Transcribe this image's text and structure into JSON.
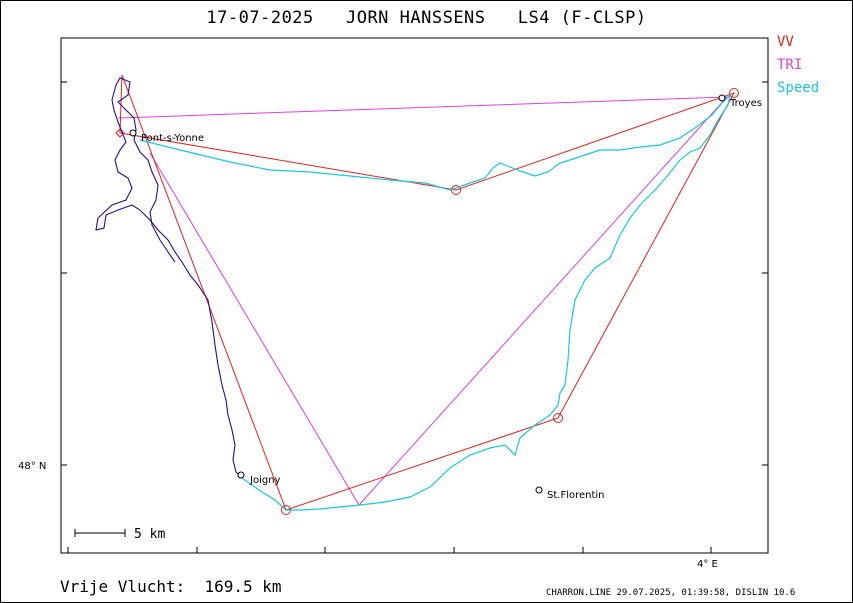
{
  "title": "17-07-2025   JORN HANSSENS   LS4 (F-CLSP)",
  "legend": {
    "vv": "VV",
    "tri": "TRI",
    "speed": "Speed"
  },
  "colors": {
    "vv": "#e8201a",
    "tri": "#e040e0",
    "speed": "#18c8e0",
    "track": "#2a0f8a"
  },
  "axes": {
    "lat_label": "48° N",
    "lon_label": "4° E"
  },
  "scale_label": "5  km",
  "towns": [
    {
      "name": "Pont-s-Yonne"
    },
    {
      "name": "Troyes"
    },
    {
      "name": "Joigny"
    },
    {
      "name": "St.Florentin"
    }
  ],
  "distance_label": "Vrije Vlucht:  169.5 km",
  "footer": "CHARRON.LINE 29.07.2025, 01:39:58, DISLIN 10.6"
}
